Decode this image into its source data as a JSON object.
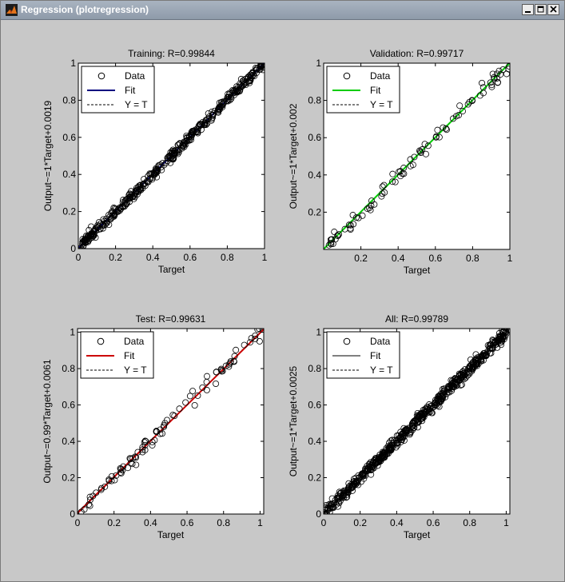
{
  "window": {
    "title": "Regression (plotregression)",
    "controls": {
      "minimize": "minimize-icon",
      "maximize": "maximize-icon",
      "close": "close-icon"
    }
  },
  "legend": {
    "data_label": "Data",
    "fit_label": "Fit",
    "yt_label": "Y = T"
  },
  "chart_data": [
    {
      "type": "scatter",
      "title": "Training: R=0.99844",
      "xlabel": "Target",
      "ylabel": "Output~=1*Target+0.0019",
      "xlim": [
        0,
        1
      ],
      "ylim": [
        0,
        1
      ],
      "xticks": [
        "0",
        "0.2",
        "0.4",
        "0.6",
        "0.8",
        "1"
      ],
      "yticks": [
        "0",
        "0.2",
        "0.4",
        "0.6",
        "0.8",
        "1"
      ],
      "fit": {
        "slope": 1,
        "intercept": 0.0019,
        "color": "#00007f"
      },
      "point_count": 420,
      "noise": 0.014,
      "seed": 11,
      "legend_position": "top-left"
    },
    {
      "type": "scatter",
      "title": "Validation: R=0.99717",
      "xlabel": "Target",
      "ylabel": "Output~=1*Target+0.002",
      "xlim": [
        0,
        1
      ],
      "ylim": [
        0,
        1
      ],
      "xticks": [
        "0.2",
        "0.4",
        "0.6",
        "0.8",
        "1"
      ],
      "yticks": [
        "0.2",
        "0.4",
        "0.6",
        "0.8",
        "1"
      ],
      "fit": {
        "slope": 1,
        "intercept": 0.002,
        "color": "#00cc00"
      },
      "point_count": 90,
      "noise": 0.018,
      "seed": 23,
      "legend_position": "top-left"
    },
    {
      "type": "scatter",
      "title": "Test: R=0.99631",
      "xlabel": "Target",
      "ylabel": "Output~=0.99*Target+0.0061",
      "xlim": [
        0,
        1.02
      ],
      "ylim": [
        0,
        1.02
      ],
      "xticks": [
        "0",
        "0.2",
        "0.4",
        "0.6",
        "0.8",
        "1"
      ],
      "yticks": [
        "0",
        "0.2",
        "0.4",
        "0.6",
        "0.8",
        "1"
      ],
      "fit": {
        "slope": 0.99,
        "intercept": 0.0061,
        "color": "#cc0000"
      },
      "point_count": 90,
      "noise": 0.02,
      "seed": 37,
      "legend_position": "top-left"
    },
    {
      "type": "scatter",
      "title": "All: R=0.99789",
      "xlabel": "Target",
      "ylabel": "Output~=1*Target+0.0025",
      "xlim": [
        0,
        1.02
      ],
      "ylim": [
        0,
        1.02
      ],
      "xticks": [
        "0",
        "0.2",
        "0.4",
        "0.6",
        "0.8",
        "1"
      ],
      "yticks": [
        "0",
        "0.2",
        "0.4",
        "0.6",
        "0.8",
        "1"
      ],
      "fit": {
        "slope": 1,
        "intercept": 0.0025,
        "color": "#808080"
      },
      "point_count": 600,
      "noise": 0.016,
      "seed": 53,
      "legend_position": "top-left"
    }
  ]
}
